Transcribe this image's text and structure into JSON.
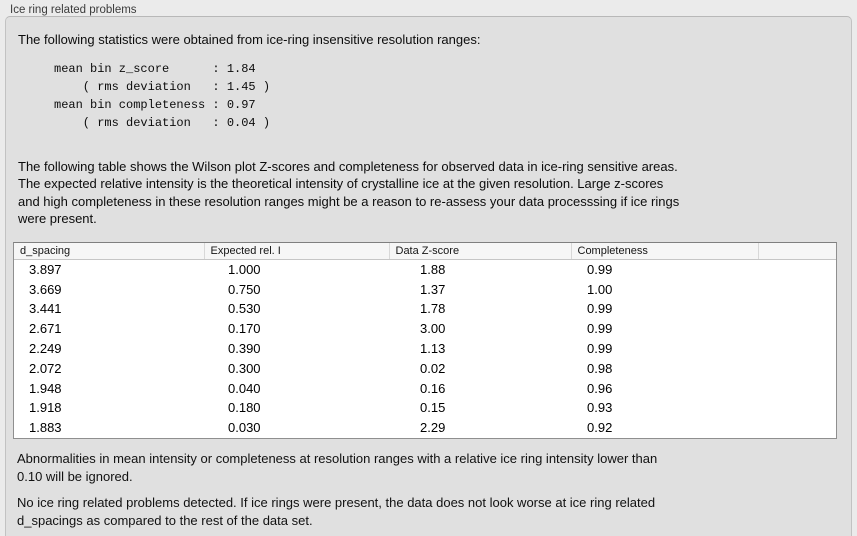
{
  "group": {
    "label": "Ice ring related problems"
  },
  "stats": {
    "intro": "The following statistics were obtained from ice-ring insensitive resolution ranges:",
    "lines": [
      "mean bin z_score      : 1.84",
      "    ( rms deviation   : 1.45 )",
      "mean bin completeness : 0.97",
      "    ( rms deviation   : 0.04 )"
    ],
    "values": {
      "mean_bin_z_score": "1.84",
      "z_score_rms_deviation": "1.45",
      "mean_bin_completeness": "0.97",
      "completeness_rms_deviation": "0.04"
    }
  },
  "description": {
    "lines": [
      "The following table shows the Wilson plot Z-scores and completeness for observed data in ice-ring sensitive areas.",
      "The expected relative intensity is the theoretical intensity of crystalline ice at the given resolution. Large z-scores",
      "and high completeness in these resolution ranges might be a reason to re-assess your data processsing if ice rings",
      "were present."
    ]
  },
  "table": {
    "columns": [
      "d_spacing",
      "Expected rel. I",
      "Data Z-score",
      "Completeness",
      ""
    ],
    "rows": [
      [
        "3.897",
        "1.000",
        "1.88",
        "0.99"
      ],
      [
        "3.669",
        "0.750",
        "1.37",
        "1.00"
      ],
      [
        "3.441",
        "0.530",
        "1.78",
        "0.99"
      ],
      [
        "2.671",
        "0.170",
        "3.00",
        "0.99"
      ],
      [
        "2.249",
        "0.390",
        "1.13",
        "0.99"
      ],
      [
        "2.072",
        "0.300",
        "0.02",
        "0.98"
      ],
      [
        "1.948",
        "0.040",
        "0.16",
        "0.96"
      ],
      [
        "1.918",
        "0.180",
        "0.15",
        "0.93"
      ],
      [
        "1.883",
        "0.030",
        "2.29",
        "0.92"
      ]
    ]
  },
  "notes": {
    "ignore_lines": [
      "Abnormalities in mean intensity or completeness at resolution ranges with a relative ice ring intensity lower than",
      "0.10 will be ignored."
    ],
    "conclusion_lines": [
      "No ice ring related problems detected. If ice rings were present, the data does not look worse at ice ring related",
      "d_spacings as compared to the rest of the data set."
    ]
  },
  "colors": {
    "page_background": "#ebebeb",
    "groupbox_background": "#e0e0e0",
    "groupbox_border": "#c2c2c2",
    "table_background": "#ffffff",
    "table_border": "#8f8f8f",
    "table_header_background": "#f6f6f6",
    "text": "#0c0c0c"
  }
}
